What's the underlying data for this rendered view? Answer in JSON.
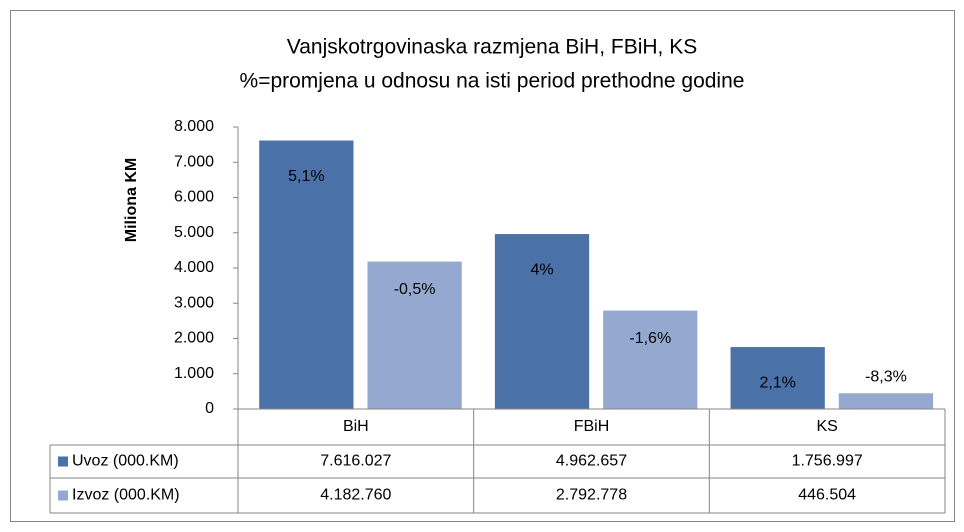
{
  "chart_data": {
    "type": "bar",
    "title": [
      "Vanjskotrgovinaska razmjena BiH, FBiH, KS",
      "%=promjena u odnosu na isti period prethodne godine"
    ],
    "y_label": "Miliona KM",
    "categories": [
      "BiH",
      "FBiH",
      "KS"
    ],
    "series": [
      {
        "name": "Uvoz (000.KM)",
        "color": "#4a72a8",
        "values": [
          7616.027,
          4962.657,
          1756.997
        ],
        "value_labels": [
          "7.616.027",
          "4.962.657",
          "1.756.997"
        ],
        "change_labels": [
          "5,1%",
          "4%",
          "2,1%"
        ]
      },
      {
        "name": "Izvoz (000.KM)",
        "color": "#95a9d0",
        "values": [
          4182.76,
          2792.778,
          446.504
        ],
        "value_labels": [
          "4.182.760",
          "2.792.778",
          "446.504"
        ],
        "change_labels": [
          "-0,5%",
          "-1,6%",
          "-8,3%"
        ]
      }
    ],
    "ylim": [
      0,
      8000
    ],
    "yticks": [
      0,
      {
        "value": 1000,
        "label": "1.000"
      },
      {
        "value": 2000,
        "label": "2.000"
      },
      {
        "value": 3000,
        "label": "3.000"
      },
      {
        "value": 4000,
        "label": "4.000"
      },
      {
        "value": 5000,
        "label": "5.000"
      },
      {
        "value": 6000,
        "label": "6.000"
      },
      {
        "value": 7000,
        "label": "7.000"
      },
      {
        "value": 8000,
        "label": "8.000"
      }
    ],
    "data_table": true
  }
}
